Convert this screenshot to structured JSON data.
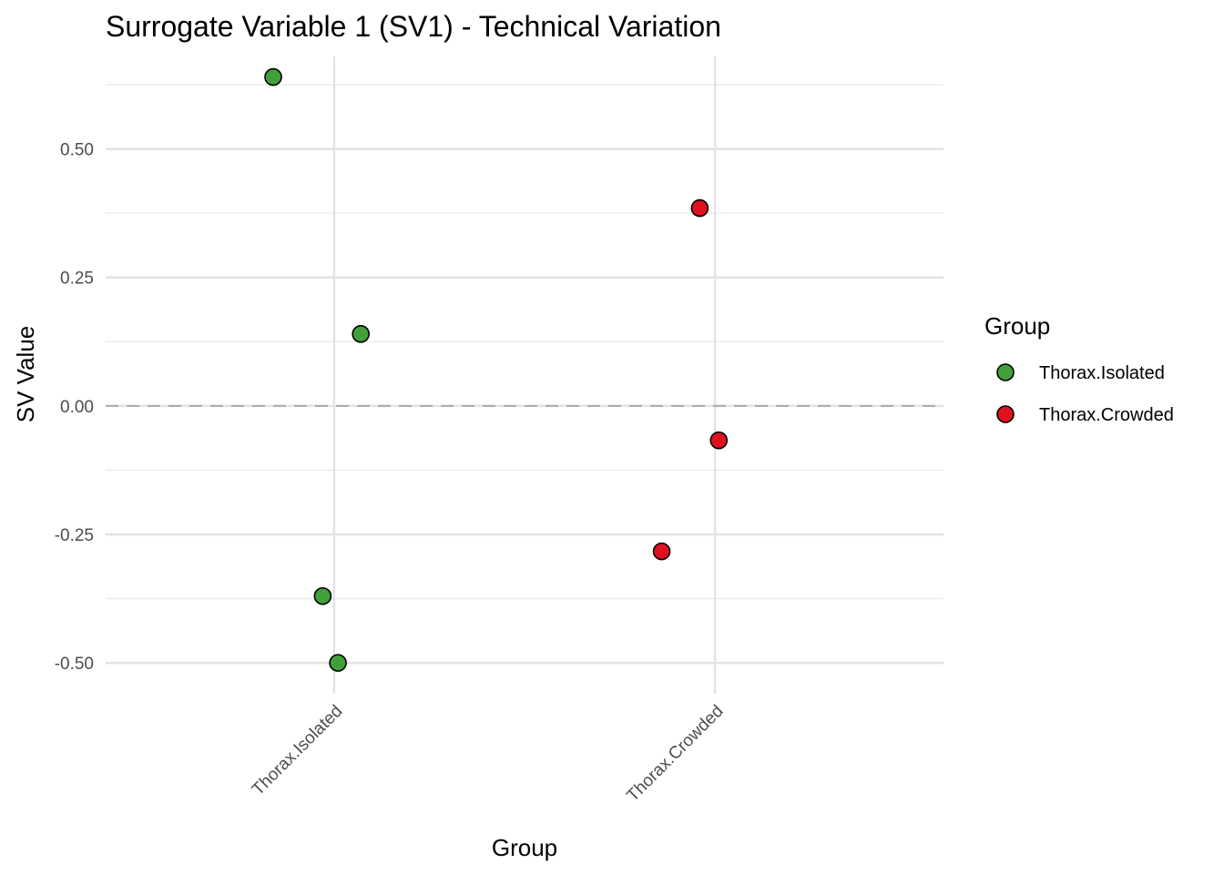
{
  "chart_data": {
    "type": "scatter",
    "title": "Surrogate Variable 1 (SV1) - Technical Variation",
    "xlabel": "Group",
    "ylabel": "SV Value",
    "categories": [
      "Thorax.Isolated",
      "Thorax.Crowded"
    ],
    "y_ticks": [
      "-0.50",
      "-0.25",
      "0.00",
      "0.25",
      "0.50"
    ],
    "ylim": [
      -0.56,
      0.68
    ],
    "reference_line": {
      "y": 0,
      "style": "dashed"
    },
    "grid": true,
    "legend": {
      "title": "Group",
      "position": "right"
    },
    "series": [
      {
        "name": "Thorax.Isolated",
        "color": "#41a03a",
        "points": [
          {
            "category": "Thorax.Isolated",
            "jitter": -0.16,
            "y": 0.64
          },
          {
            "category": "Thorax.Isolated",
            "jitter": 0.07,
            "y": 0.14
          },
          {
            "category": "Thorax.Isolated",
            "jitter": -0.03,
            "y": -0.37
          },
          {
            "category": "Thorax.Isolated",
            "jitter": 0.01,
            "y": -0.5
          }
        ]
      },
      {
        "name": "Thorax.Crowded",
        "color": "#e0101e",
        "points": [
          {
            "category": "Thorax.Crowded",
            "jitter": -0.04,
            "y": 0.385
          },
          {
            "category": "Thorax.Crowded",
            "jitter": 0.01,
            "y": -0.067
          },
          {
            "category": "Thorax.Crowded",
            "jitter": -0.14,
            "y": -0.283
          }
        ]
      }
    ]
  }
}
